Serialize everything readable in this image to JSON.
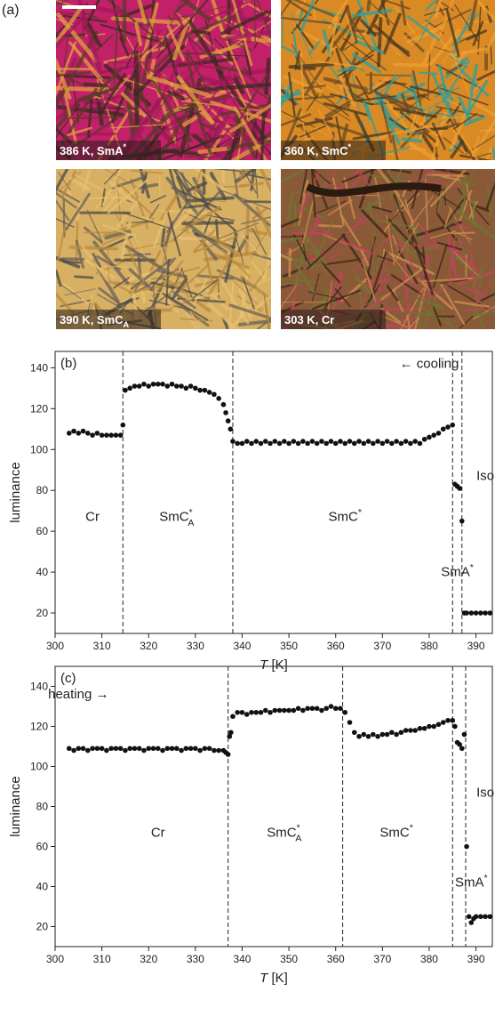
{
  "panel_label": "(a)",
  "images": [
    {
      "label": "386 K, SmA",
      "sup": "*"
    },
    {
      "label": "360 K, SmC",
      "sup": "*"
    },
    {
      "label": "390 K, SmC",
      "sub": "A"
    },
    {
      "label": "303 K, Cr"
    }
  ],
  "chart_data": [
    {
      "type": "scatter",
      "panel_label": "(b)",
      "y_label": "luminance",
      "x_label_symbol": "T",
      "x_label_unit": "[K]",
      "xlim": [
        300,
        393.5
      ],
      "ylim": [
        10,
        148
      ],
      "xticks": [
        300,
        310,
        320,
        330,
        340,
        350,
        360,
        370,
        380,
        390
      ],
      "yticks": [
        20,
        40,
        60,
        80,
        100,
        120,
        140
      ],
      "transitions": [
        314.5,
        338,
        385,
        387
      ],
      "annotations": [
        {
          "text": "Cr"
        },
        {
          "text": "SmC",
          "sup": "*",
          "sub": "A"
        },
        {
          "text": "SmC",
          "sup": "*"
        },
        {
          "text": "SmA",
          "sup": "*"
        },
        {
          "text": "Iso"
        },
        {
          "text": "← cooling"
        }
      ],
      "x": [
        303,
        304,
        305,
        306,
        307,
        308,
        309,
        310,
        311,
        312,
        313,
        314,
        314.5,
        315,
        316,
        317,
        318,
        319,
        320,
        321,
        322,
        323,
        324,
        325,
        326,
        327,
        328,
        329,
        330,
        331,
        332,
        333,
        334,
        335,
        336,
        336.5,
        337,
        337.5,
        338,
        339,
        340,
        341,
        342,
        343,
        344,
        345,
        346,
        347,
        348,
        349,
        350,
        351,
        352,
        353,
        354,
        355,
        356,
        357,
        358,
        359,
        360,
        361,
        362,
        363,
        364,
        365,
        366,
        367,
        368,
        369,
        370,
        371,
        372,
        373,
        374,
        375,
        376,
        377,
        378,
        379,
        380,
        381,
        382,
        383,
        384,
        385,
        385.5,
        386,
        386.5,
        387,
        387.5,
        388,
        389,
        390,
        391,
        392,
        393
      ],
      "series": [
        {
          "color": "#111111",
          "values": [
            108,
            109,
            108,
            109,
            108,
            107,
            108,
            107,
            107,
            107,
            107,
            107,
            112,
            129,
            130,
            131,
            131,
            132,
            131,
            132,
            132,
            132,
            131,
            132,
            131,
            131,
            130,
            131,
            130,
            129,
            129,
            128,
            127,
            125,
            122,
            118,
            114,
            110,
            104,
            103,
            103,
            104,
            103,
            104,
            103,
            104,
            103,
            104,
            103,
            104,
            103,
            104,
            103,
            104,
            103,
            104,
            103,
            104,
            103,
            104,
            103,
            104,
            103,
            104,
            103,
            104,
            103,
            104,
            103,
            104,
            103,
            104,
            103,
            104,
            103,
            104,
            103,
            104,
            103,
            105,
            106,
            107,
            108,
            110,
            111,
            112,
            83,
            82,
            81,
            65,
            20,
            20,
            20,
            20,
            20,
            20,
            20
          ]
        }
      ]
    },
    {
      "type": "scatter",
      "panel_label": "(c)",
      "y_label": "luminance",
      "x_label_symbol": "T",
      "x_label_unit": "[K]",
      "xlim": [
        300,
        393.5
      ],
      "ylim": [
        10,
        150
      ],
      "xticks": [
        300,
        310,
        320,
        330,
        340,
        350,
        360,
        370,
        380,
        390
      ],
      "yticks": [
        20,
        40,
        60,
        80,
        100,
        120,
        140
      ],
      "transitions": [
        337,
        361.5,
        385,
        387.8
      ],
      "annotations": [
        {
          "text": "heating →"
        },
        {
          "text": "Cr"
        },
        {
          "text": "SmC",
          "sup": "*",
          "sub": "A"
        },
        {
          "text": "SmC",
          "sup": "*"
        },
        {
          "text": "SmA",
          "sup": "*"
        },
        {
          "text": "Iso"
        }
      ],
      "x": [
        303,
        304,
        305,
        306,
        307,
        308,
        309,
        310,
        311,
        312,
        313,
        314,
        315,
        316,
        317,
        318,
        319,
        320,
        321,
        322,
        323,
        324,
        325,
        326,
        327,
        328,
        329,
        330,
        331,
        332,
        333,
        334,
        335,
        336,
        336.5,
        337,
        337.3,
        337.6,
        338,
        339,
        340,
        341,
        342,
        343,
        344,
        345,
        346,
        347,
        348,
        349,
        350,
        351,
        352,
        353,
        354,
        355,
        356,
        357,
        358,
        359,
        360,
        361,
        362,
        363,
        364,
        365,
        366,
        367,
        368,
        369,
        370,
        371,
        372,
        373,
        374,
        375,
        376,
        377,
        378,
        379,
        380,
        381,
        382,
        383,
        384,
        385,
        385.5,
        386,
        386.5,
        387,
        387.5,
        388,
        388.5,
        389,
        389.5,
        390,
        391,
        392,
        393
      ],
      "series": [
        {
          "color": "#111111",
          "values": [
            109,
            108,
            109,
            109,
            108,
            109,
            109,
            109,
            108,
            109,
            109,
            109,
            108,
            109,
            109,
            109,
            108,
            109,
            109,
            109,
            108,
            109,
            109,
            109,
            108,
            109,
            109,
            109,
            108,
            109,
            109,
            108,
            108,
            108,
            107,
            106,
            115,
            117,
            125,
            127,
            127,
            126,
            127,
            127,
            127,
            128,
            127,
            128,
            128,
            128,
            128,
            128,
            129,
            128,
            129,
            129,
            129,
            128,
            129,
            130,
            129,
            129,
            127,
            122,
            117,
            115,
            116,
            115,
            116,
            115,
            116,
            116,
            117,
            116,
            117,
            118,
            118,
            118,
            119,
            119,
            120,
            120,
            121,
            122,
            123,
            123,
            120,
            112,
            111,
            109,
            116,
            60,
            25,
            22,
            24,
            25,
            25,
            25,
            25
          ]
        }
      ]
    }
  ]
}
